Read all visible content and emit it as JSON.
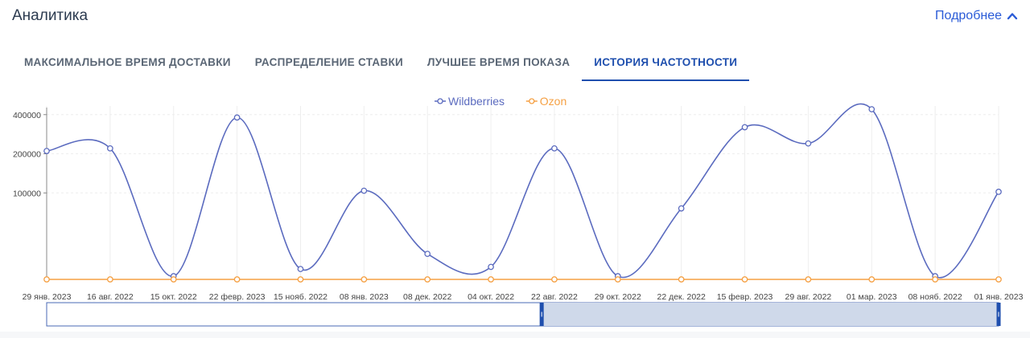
{
  "header": {
    "title": "Аналитика",
    "more_label": "Подробнее"
  },
  "tabs": [
    {
      "label": "МАКСИМАЛЬНОЕ ВРЕМЯ ДОСТАВКИ",
      "active": false
    },
    {
      "label": "РАСПРЕДЕЛЕНИЕ СТАВКИ",
      "active": false
    },
    {
      "label": "ЛУЧШЕЕ ВРЕМЯ ПОКАЗА",
      "active": false
    },
    {
      "label": "ИСТОРИЯ ЧАСТОТНОСТИ",
      "active": true
    }
  ],
  "icons": {
    "more": "chevron-up-icon"
  },
  "colors": {
    "wildberries": "#5b6bbf",
    "ozon": "#f5a043",
    "accent": "#1f4fae",
    "navigator_fill": "#cfd9ea"
  },
  "chart_data": {
    "type": "line",
    "y_scale": "log",
    "categories": [
      "29 янв. 2023",
      "16 авг. 2022",
      "15 окт. 2022",
      "22 февр. 2023",
      "15 нояб. 2022",
      "08 янв. 2023",
      "08 дек. 2022",
      "04 окт. 2022",
      "22 авг. 2022",
      "29 окт. 2022",
      "22 дек. 2022",
      "15 февр. 2023",
      "29 авг. 2022",
      "01 мар. 2023",
      "08 нояб. 2022",
      "01 янв. 2023"
    ],
    "yticks": [
      "400000",
      "200000",
      "100000"
    ],
    "series": [
      {
        "name": "Wildberries",
        "values": [
          210000,
          220000,
          20000,
          380000,
          26000,
          104000,
          34000,
          27000,
          220000,
          20000,
          76000,
          320000,
          240000,
          440000,
          21500,
          102000
        ]
      },
      {
        "name": "Ozon",
        "values": [
          0,
          0,
          0,
          0,
          0,
          0,
          0,
          0,
          0,
          0,
          0,
          0,
          0,
          0,
          0,
          0
        ]
      }
    ],
    "grid": true,
    "legend_position": "top-center",
    "navigator": {
      "selected_from": 0.52,
      "selected_to": 1.0
    }
  }
}
